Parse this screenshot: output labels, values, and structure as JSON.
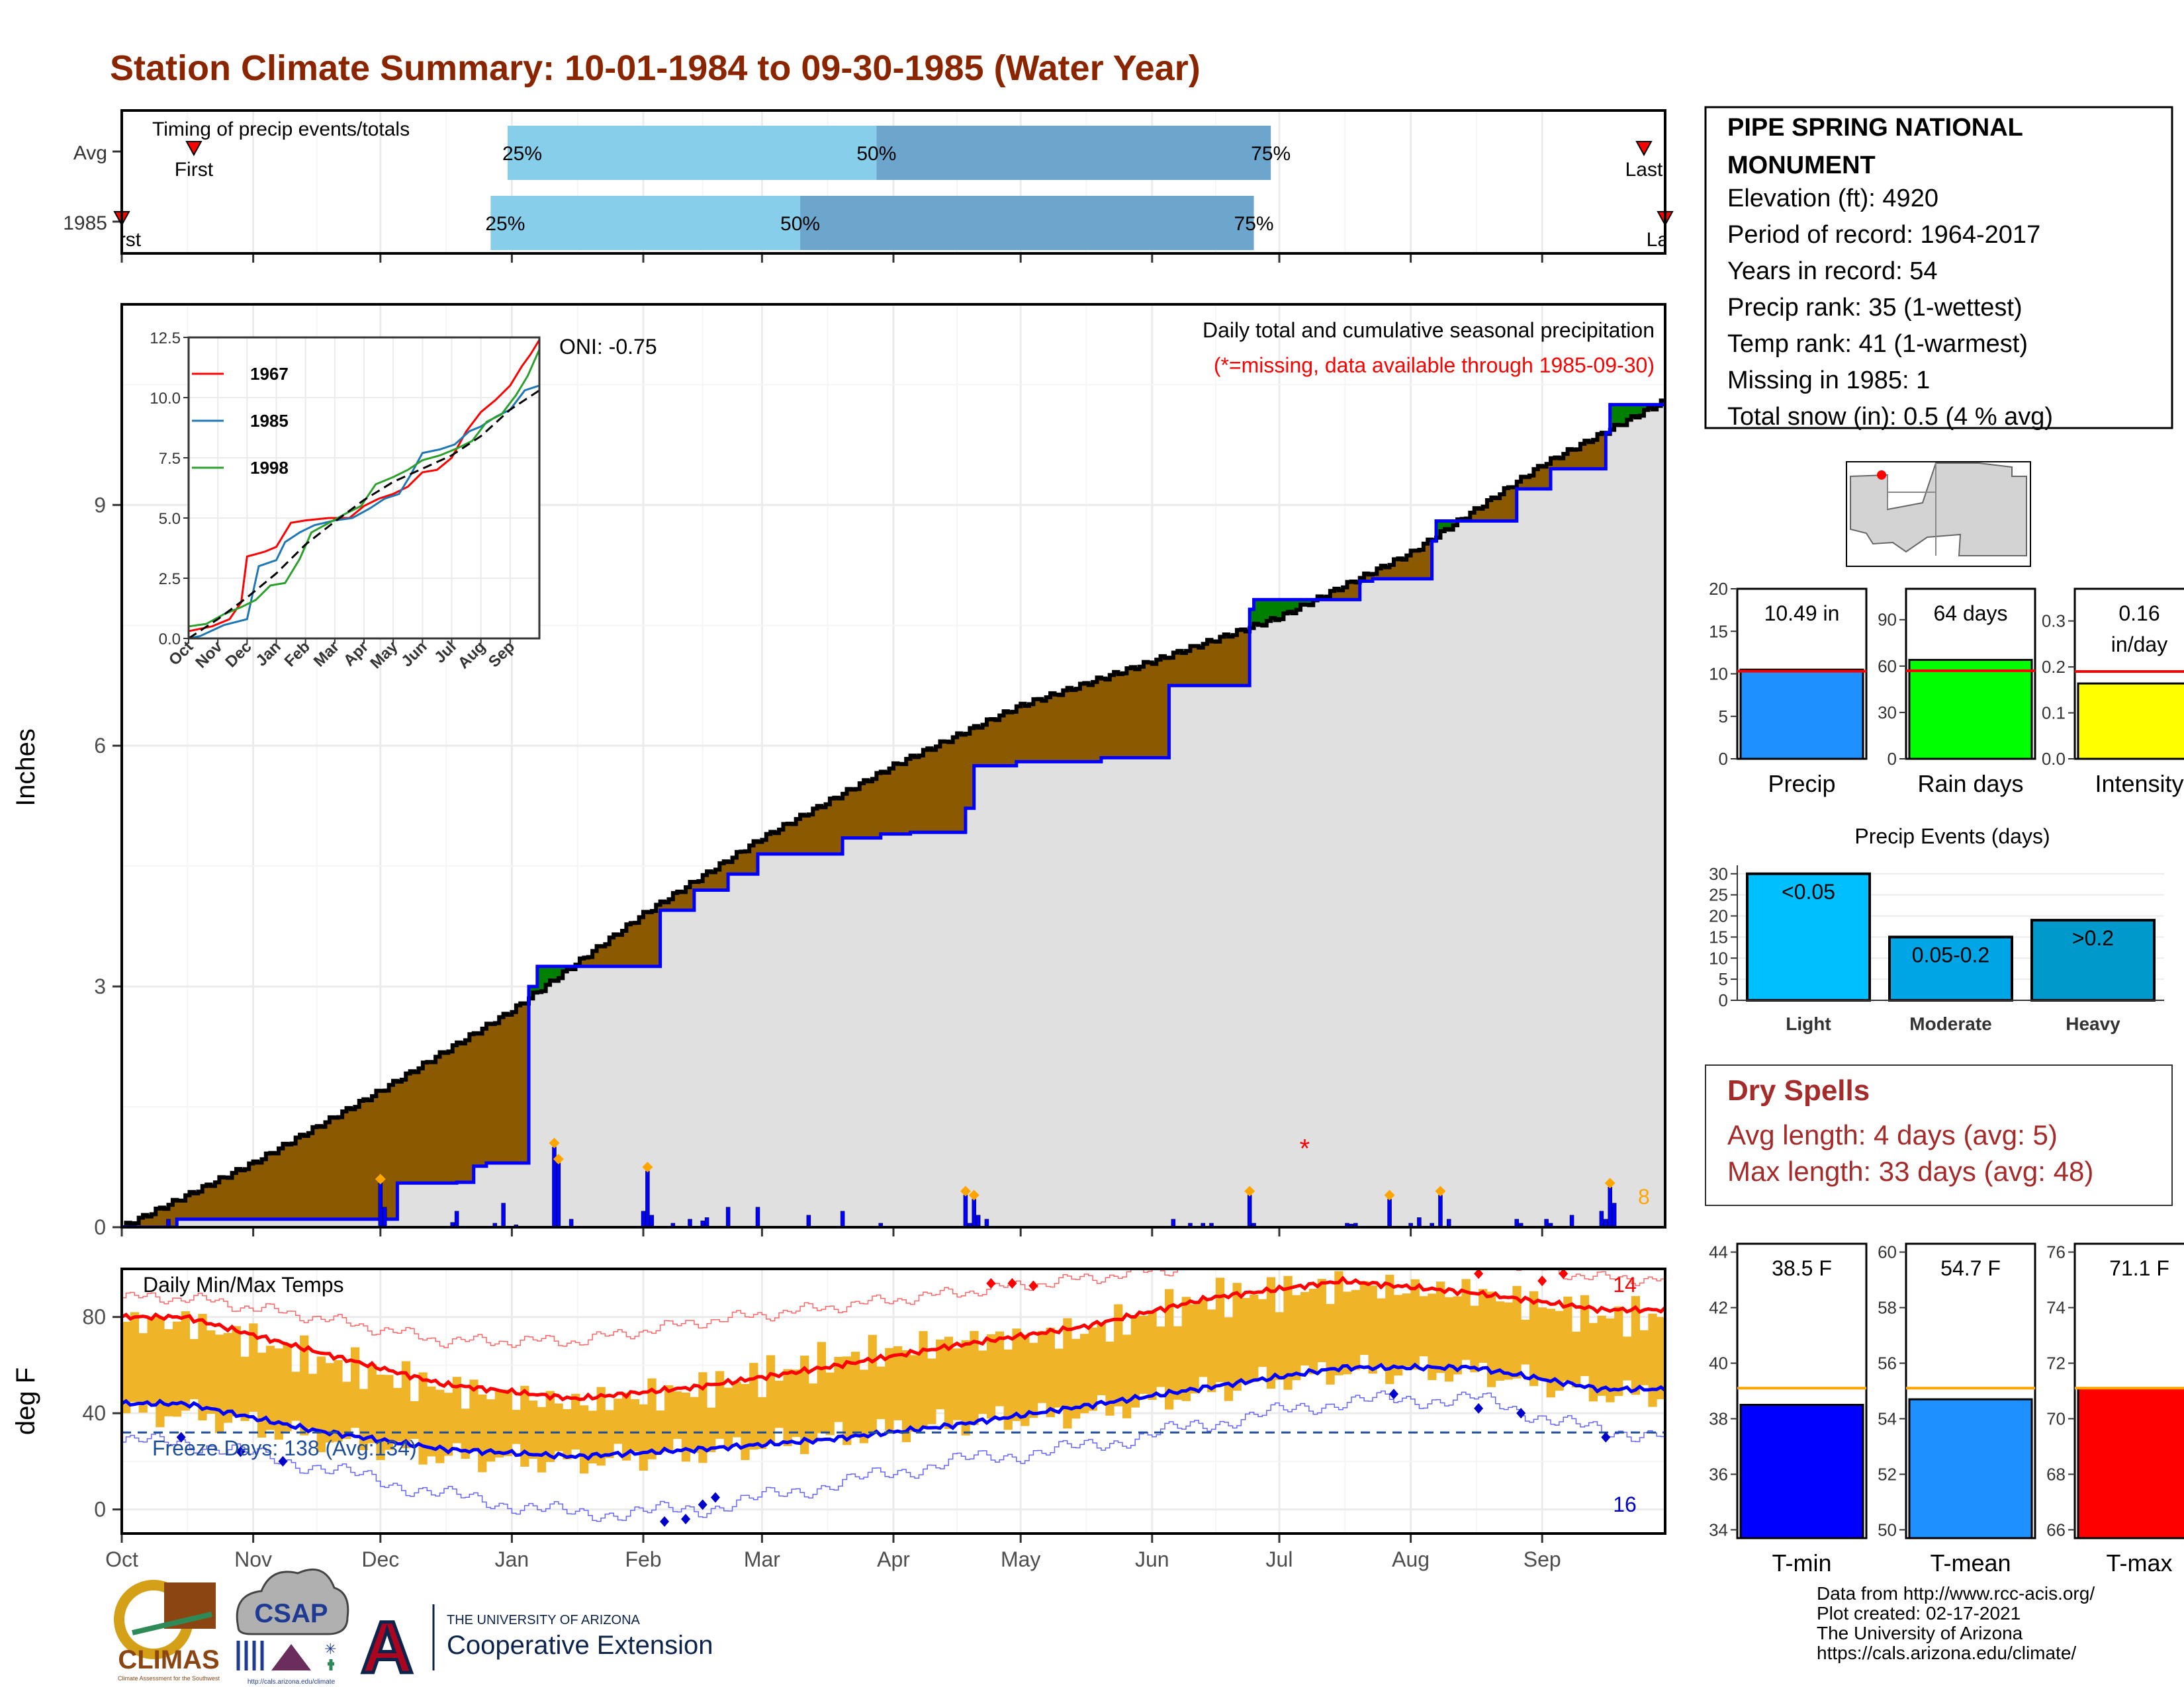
{
  "title": "Station Climate Summary: 10-01-1984 to 09-30-1985 (Water Year)",
  "colors": {
    "title": "#8B2500",
    "green": "#008000",
    "brown": "#8B5A00",
    "bars_blue": "#0000FF",
    "avg_grey": "#E0E0E0",
    "orange": "#FFA500",
    "temp_band": "#F0B429",
    "quart_light": "#87CEEB",
    "quart_dark": "#6CA6CD",
    "dry_spell": "#A52A2A",
    "missing": "#FF0000"
  },
  "station": {
    "name_line1": "PIPE SPRING NATIONAL",
    "name_line2": "MONUMENT",
    "elevation": "Elevation (ft): 4920",
    "period": "Period of record: 1964-2017",
    "years": "Years in record: 54",
    "precip_rank": "Precip rank: 35 (1-wettest)",
    "temp_rank": "Temp rank: 41 (1-warmest)",
    "missing": "Missing in 1985: 1",
    "snow": "Total snow (in): 0.5 (4 % avg)"
  },
  "timing": {
    "title": "Timing of precip events/totals",
    "row_labels": [
      "Avg",
      "1985"
    ],
    "avg": {
      "first": "First",
      "last": "Last",
      "q25": "25%",
      "q50": "50%",
      "q75": "75%",
      "first_date": "1984-10-18",
      "last_date": "1985-09-25",
      "q25_date": "1984-12-31",
      "q50_date": "1985-03-28",
      "q75_date": "1985-06-29"
    },
    "y1985": {
      "first": "First",
      "last": "Last",
      "q25": "25%",
      "q50": "50%",
      "q75": "75%",
      "first_date": "1984-10-01",
      "last_date": "1985-09-30",
      "q25_date": "1984-12-27",
      "q50_date": "1985-03-10",
      "q75_date": "1985-06-25"
    }
  },
  "chart_data": [
    {
      "id": "precip-main",
      "type": "area",
      "ylabel": "Inches",
      "ylim": [
        0,
        11.5
      ],
      "y_ticks": [
        0,
        3,
        6,
        9
      ],
      "x_tick_labels": [
        "Oct",
        "Nov",
        "Dec",
        "Jan",
        "Feb",
        "Mar",
        "Apr",
        "May",
        "Jun",
        "Jul",
        "Aug",
        "Sep"
      ],
      "x_range": [
        "1984-10-01",
        "1985-09-30"
      ],
      "oni": "ONI: -0.75",
      "title": "Daily total and cumulative seasonal precipitation",
      "subtitle": "(*=missing, data available through 1985-09-30)",
      "extreme_count": "8",
      "series": [
        {
          "name": "1985 cumulative",
          "x": [
            "1984-10-01",
            "1984-10-12",
            "1984-10-14",
            "1984-12-01",
            "1984-12-05",
            "1984-12-19",
            "1984-12-23",
            "1984-12-26",
            "1985-01-05",
            "1985-01-07",
            "1985-02-05",
            "1985-02-13",
            "1985-02-21",
            "1985-02-28",
            "1985-03-20",
            "1985-03-29",
            "1985-04-05",
            "1985-04-18",
            "1985-04-20",
            "1985-04-30",
            "1985-05-20",
            "1985-06-05",
            "1985-06-24",
            "1985-06-25",
            "1985-06-30",
            "1985-07-20",
            "1985-07-23",
            "1985-08-06",
            "1985-08-07",
            "1985-08-26",
            "1985-09-03",
            "1985-09-16",
            "1985-09-17",
            "1985-09-30"
          ],
          "y": [
            0.0,
            0.0,
            0.1,
            0.1,
            0.55,
            0.56,
            0.76,
            0.8,
            3.0,
            3.25,
            3.95,
            4.2,
            4.4,
            4.65,
            4.85,
            4.9,
            4.92,
            5.22,
            5.75,
            5.8,
            5.85,
            6.75,
            7.7,
            7.82,
            7.82,
            8.05,
            8.08,
            8.55,
            8.8,
            9.2,
            9.45,
            9.9,
            10.25,
            10.3
          ]
        },
        {
          "name": "average cumulative",
          "x": [
            "1984-10-01",
            "1984-11-01",
            "1984-12-01",
            "1985-01-01",
            "1985-02-01",
            "1985-03-01",
            "1985-04-01",
            "1985-05-01",
            "1985-06-01",
            "1985-07-01",
            "1985-08-01",
            "1985-09-01",
            "1985-09-30"
          ],
          "y": [
            0.0,
            0.8,
            1.7,
            2.7,
            3.9,
            4.85,
            5.75,
            6.5,
            7.05,
            7.6,
            8.4,
            9.5,
            10.3
          ]
        }
      ],
      "daily_bars": {
        "x": [
          "1984-10-12",
          "1984-12-01",
          "1984-12-02",
          "1984-12-18",
          "1984-12-19",
          "1984-12-28",
          "1984-12-30",
          "1985-01-02",
          "1985-01-11",
          "1985-01-12",
          "1985-01-15",
          "1985-02-01",
          "1985-02-02",
          "1985-02-03",
          "1985-02-08",
          "1985-02-12",
          "1985-02-15",
          "1985-02-16",
          "1985-02-21",
          "1985-02-28",
          "1985-03-12",
          "1985-03-20",
          "1985-03-29",
          "1985-04-18",
          "1985-04-19",
          "1985-04-20",
          "1985-04-21",
          "1985-04-23",
          "1985-06-06",
          "1985-06-10",
          "1985-06-13",
          "1985-06-15",
          "1985-06-24",
          "1985-06-25",
          "1985-07-17",
          "1985-07-18",
          "1985-07-19",
          "1985-07-27",
          "1985-08-01",
          "1985-08-03",
          "1985-08-06",
          "1985-08-08",
          "1985-08-10",
          "1985-08-26",
          "1985-08-27",
          "1985-09-02",
          "1985-09-03",
          "1985-09-08",
          "1985-09-15",
          "1985-09-16",
          "1985-09-17",
          "1985-09-18"
        ],
        "y": [
          0.1,
          0.55,
          0.25,
          0.06,
          0.2,
          0.05,
          0.3,
          0.03,
          1.0,
          0.8,
          0.1,
          0.2,
          0.7,
          0.15,
          0.05,
          0.1,
          0.08,
          0.12,
          0.25,
          0.25,
          0.15,
          0.2,
          0.05,
          0.4,
          0.05,
          0.35,
          0.15,
          0.1,
          0.1,
          0.05,
          0.05,
          0.05,
          0.4,
          0.05,
          0.05,
          0.04,
          0.05,
          0.35,
          0.05,
          0.12,
          0.05,
          0.4,
          0.1,
          0.1,
          0.05,
          0.1,
          0.05,
          0.15,
          0.2,
          0.1,
          0.5,
          0.3
        ]
      },
      "missing_marks": {
        "x": [
          "1985-07-07"
        ],
        "y": [
          1.0
        ]
      }
    },
    {
      "id": "inset-cumulative",
      "type": "line",
      "ylim": [
        0,
        12.5
      ],
      "y_ticks": [
        0.0,
        2.5,
        5.0,
        7.5,
        10.0,
        12.5
      ],
      "x_tick_labels": [
        "Oct",
        "Nov",
        "Dec",
        "Jan",
        "Feb",
        "Mar",
        "Apr",
        "May",
        "Jun",
        "Jul",
        "Aug",
        "Sep"
      ],
      "series": [
        {
          "name": "1967",
          "color": "#FF0000",
          "x": [
            0,
            0.8,
            1.4,
            1.8,
            2.0,
            2.6,
            3.0,
            3.5,
            4.0,
            4.8,
            5.5,
            6.0,
            6.5,
            7.0,
            7.5,
            8.0,
            8.5,
            9.0,
            9.5,
            10.0,
            10.5,
            11.0,
            11.4,
            11.7,
            12.0
          ],
          "y": [
            0.3,
            0.5,
            0.8,
            1.5,
            3.4,
            3.6,
            3.8,
            4.8,
            4.9,
            5.0,
            5.0,
            5.5,
            5.8,
            6.0,
            6.3,
            6.9,
            7.0,
            7.5,
            8.6,
            9.4,
            9.9,
            10.5,
            11.3,
            11.8,
            12.4
          ]
        },
        {
          "name": "1985",
          "color": "#1F77B4",
          "x": [
            0,
            0.4,
            1.2,
            2.0,
            2.4,
            3.0,
            3.3,
            3.8,
            4.3,
            5.0,
            5.6,
            6.2,
            6.7,
            7.2,
            7.6,
            8.0,
            8.6,
            9.1,
            9.6,
            10.0,
            10.5,
            11.0,
            11.5,
            12.0
          ],
          "y": [
            0,
            0.1,
            0.55,
            0.8,
            3.0,
            3.25,
            4.0,
            4.4,
            4.7,
            4.9,
            5.0,
            5.4,
            5.8,
            6.0,
            6.8,
            7.7,
            7.85,
            8.05,
            8.6,
            8.8,
            9.2,
            9.5,
            10.3,
            10.5
          ]
        },
        {
          "name": "1998",
          "color": "#2CA02C",
          "x": [
            0,
            0.6,
            1.2,
            1.8,
            2.3,
            2.8,
            3.3,
            3.8,
            4.2,
            4.8,
            5.4,
            5.9,
            6.4,
            7.0,
            7.5,
            8.0,
            8.6,
            9.2,
            9.7,
            10.2,
            10.7,
            11.2,
            11.6,
            12.0
          ],
          "y": [
            0.5,
            0.6,
            1.0,
            1.3,
            1.6,
            2.2,
            2.3,
            3.3,
            4.4,
            4.8,
            5.2,
            5.5,
            6.4,
            6.7,
            7.0,
            7.4,
            7.6,
            7.9,
            8.2,
            9.0,
            9.3,
            10.1,
            10.9,
            12.0
          ]
        },
        {
          "name": "average",
          "color": "#000000",
          "x": [
            0,
            1,
            2,
            3,
            4,
            5,
            6,
            7,
            8,
            9,
            10,
            11,
            12
          ],
          "y": [
            0,
            0.8,
            1.7,
            2.7,
            3.9,
            4.85,
            5.75,
            6.5,
            7.05,
            7.6,
            8.4,
            9.5,
            10.3
          ]
        }
      ]
    },
    {
      "id": "temperature",
      "type": "line",
      "title": "Daily Min/Max Temps",
      "ylabel": "deg F",
      "ylim": [
        -10,
        100
      ],
      "y_ticks": [
        0,
        40,
        80
      ],
      "freeze_line": 32,
      "freeze_days": "Freeze Days: 138 (Avg:134)",
      "record_high_count": "14",
      "record_low_count": "16",
      "months": [
        "Oct",
        "Nov",
        "Dec",
        "Jan",
        "Feb",
        "Mar",
        "Apr",
        "May",
        "Jun",
        "Jul",
        "Aug",
        "Sep"
      ],
      "avg_max": [
        80,
        66,
        52,
        46,
        51,
        59,
        68,
        76,
        88,
        95,
        90,
        83
      ],
      "avg_min": [
        44,
        33,
        25,
        22,
        25,
        29,
        35,
        43,
        51,
        59,
        59,
        50
      ],
      "rec_max": [
        88,
        80,
        70,
        70,
        78,
        84,
        90,
        96,
        102,
        107,
        104,
        96
      ],
      "rec_min": [
        28,
        18,
        6,
        -2,
        0,
        10,
        20,
        26,
        36,
        45,
        46,
        32
      ],
      "max_1985": [
        78,
        62,
        50,
        44,
        50,
        62,
        70,
        74,
        88,
        93,
        90,
        80
      ],
      "min_1985": [
        40,
        30,
        22,
        20,
        24,
        30,
        36,
        40,
        50,
        58,
        57,
        48
      ]
    },
    {
      "id": "precip-summary",
      "type": "bar",
      "panels": [
        {
          "label": "Precip",
          "value": 10.49,
          "avg": 10.3,
          "value_label": "10.49 in",
          "ylim": [
            0,
            20
          ],
          "y_ticks": [
            0,
            5,
            10,
            15,
            20
          ],
          "color": "#1E90FF"
        },
        {
          "label": "Rain days",
          "value": 64,
          "avg": 57,
          "value_label": "64 days",
          "ylim": [
            0,
            110
          ],
          "y_ticks": [
            0,
            30,
            60,
            90
          ],
          "color": "#00FF00"
        },
        {
          "label": "Intensity",
          "value": 0.164,
          "avg": 0.19,
          "value_label": "0.16",
          "value_label2": "in/day",
          "ylim": [
            0,
            0.37
          ],
          "y_ticks": [
            "0.0",
            "0.1",
            "0.2",
            "0.3"
          ],
          "color": "#FFFF00"
        }
      ]
    },
    {
      "id": "precip-events",
      "type": "bar",
      "title": "Precip Events (days)",
      "categories": [
        "Light",
        "Moderate",
        "Heavy"
      ],
      "values": [
        30,
        15,
        19
      ],
      "value_labels": [
        "<0.05",
        "0.05-0.2",
        ">0.2"
      ],
      "ylim": [
        0,
        32
      ],
      "y_ticks": [
        0,
        5,
        10,
        15,
        20,
        25,
        30
      ],
      "colors": [
        "#00BFFF",
        "#00A5E5",
        "#0099CC"
      ]
    },
    {
      "id": "temp-summary",
      "type": "bar",
      "panels": [
        {
          "label": "T-min",
          "value": 38.5,
          "avg": 39.1,
          "value_label": "38.5 F",
          "ylim": [
            33.7,
            44.3
          ],
          "y_ticks": [
            34,
            36,
            38,
            40,
            42,
            44
          ],
          "color": "#0000FF"
        },
        {
          "label": "T-mean",
          "value": 54.7,
          "avg": 55.1,
          "value_label": "54.7 F",
          "ylim": [
            49.7,
            60.3
          ],
          "y_ticks": [
            50,
            52,
            54,
            56,
            58,
            60
          ],
          "color": "#1E90FF"
        },
        {
          "label": "T-max",
          "value": 71.1,
          "avg": 71.1,
          "value_label": "71.1 F",
          "ylim": [
            65.7,
            76.3
          ],
          "y_ticks": [
            66,
            68,
            70,
            72,
            74,
            76
          ],
          "color": "#FF0000"
        }
      ]
    }
  ],
  "dry_spells": {
    "title": "Dry Spells",
    "avg": "Avg length: 4 days (avg: 5)",
    "max": "Max length: 33 days (avg: 48)"
  },
  "credits": {
    "line1": "Data from http://www.rcc-acis.org/",
    "line2": "Plot created: 02-17-2021",
    "line3": "The University of Arizona",
    "line4": "https://cals.arizona.edu/climate/"
  },
  "logos": {
    "climas": "CLIMAS",
    "climas_sub": "Climate Assessment for the Southwest",
    "csap": "CSAP",
    "csap_url": "http://cals.arizona.edu/climate",
    "ua_line1": "THE UNIVERSITY OF ARIZONA",
    "ua_line2": "Cooperative Extension"
  }
}
